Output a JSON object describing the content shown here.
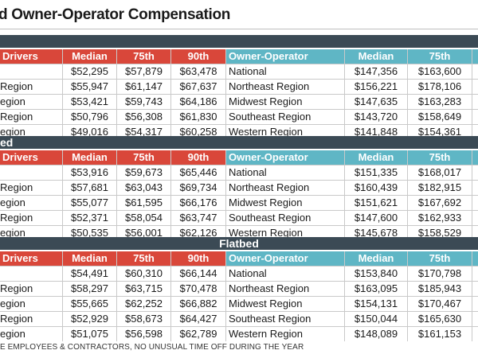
{
  "title": "d Owner-Operator Compensation",
  "headers": {
    "drivers": "Drivers",
    "median": "Median",
    "p75": "75th",
    "p90": "90th",
    "owner_operator": "Owner-Operator"
  },
  "sections": [
    {
      "label": "",
      "rows": [
        {
          "region": "",
          "d_median": "$52,295",
          "d_p75": "$57,879",
          "d_p90": "$63,478",
          "oo_region": "National",
          "oo_median": "$147,356",
          "oo_p75": "$163,600"
        },
        {
          "region": "Region",
          "d_median": "$55,947",
          "d_p75": "$61,147",
          "d_p90": "$67,637",
          "oo_region": "Northeast Region",
          "oo_median": "$156,221",
          "oo_p75": "$178,106"
        },
        {
          "region": "egion",
          "d_median": "$53,421",
          "d_p75": "$59,743",
          "d_p90": "$64,186",
          "oo_region": "Midwest Region",
          "oo_median": "$147,635",
          "oo_p75": "$163,283"
        },
        {
          "region": "Region",
          "d_median": "$50,796",
          "d_p75": "$56,308",
          "d_p90": "$61,830",
          "oo_region": "Southeast Region",
          "oo_median": "$143,720",
          "oo_p75": "$158,649"
        },
        {
          "region": "egion",
          "d_median": "$49,016",
          "d_p75": "$54,317",
          "d_p90": "$60,258",
          "oo_region": "Western Region",
          "oo_median": "$141,848",
          "oo_p75": "$154,361"
        }
      ]
    },
    {
      "label": "ed",
      "rows": [
        {
          "region": "",
          "d_median": "$53,916",
          "d_p75": "$59,673",
          "d_p90": "$65,446",
          "oo_region": "National",
          "oo_median": "$151,335",
          "oo_p75": "$168,017"
        },
        {
          "region": "Region",
          "d_median": "$57,681",
          "d_p75": "$63,043",
          "d_p90": "$69,734",
          "oo_region": "Northeast Region",
          "oo_median": "$160,439",
          "oo_p75": "$182,915"
        },
        {
          "region": "egion",
          "d_median": "$55,077",
          "d_p75": "$61,595",
          "d_p90": "$66,176",
          "oo_region": "Midwest Region",
          "oo_median": "$151,621",
          "oo_p75": "$167,692"
        },
        {
          "region": "Region",
          "d_median": "$52,371",
          "d_p75": "$58,054",
          "d_p90": "$63,747",
          "oo_region": "Southeast Region",
          "oo_median": "$147,600",
          "oo_p75": "$162,933"
        },
        {
          "region": "egion",
          "d_median": "$50,535",
          "d_p75": "$56,001",
          "d_p90": "$62,126",
          "oo_region": "Western Region",
          "oo_median": "$145,678",
          "oo_p75": "$158,529"
        }
      ]
    },
    {
      "label": "Flatbed",
      "rows": [
        {
          "region": "",
          "d_median": "$54,491",
          "d_p75": "$60,310",
          "d_p90": "$66,144",
          "oo_region": "National",
          "oo_median": "$153,840",
          "oo_p75": "$170,798"
        },
        {
          "region": "Region",
          "d_median": "$58,297",
          "d_p75": "$63,715",
          "d_p90": "$70,478",
          "oo_region": "Northeast Region",
          "oo_median": "$163,095",
          "oo_p75": "$185,943"
        },
        {
          "region": "egion",
          "d_median": "$55,665",
          "d_p75": "$62,252",
          "d_p90": "$66,882",
          "oo_region": "Midwest Region",
          "oo_median": "$154,131",
          "oo_p75": "$170,467"
        },
        {
          "region": "Region",
          "d_median": "$52,929",
          "d_p75": "$58,673",
          "d_p90": "$64,427",
          "oo_region": "Southeast Region",
          "oo_median": "$150,044",
          "oo_p75": "$165,630"
        },
        {
          "region": "egion",
          "d_median": "$51,075",
          "d_p75": "$56,598",
          "d_p90": "$62,789",
          "oo_region": "Western Region",
          "oo_median": "$148,089",
          "oo_p75": "$161,153"
        }
      ]
    }
  ],
  "footnote": "E EMPLOYEES & CONTRACTORS, NO UNUSUAL TIME OFF DURING THE YEAR",
  "colors": {
    "driver_header": "#d9473a",
    "owner_header": "#5fb6c5",
    "section_bar": "#3b4a55"
  }
}
